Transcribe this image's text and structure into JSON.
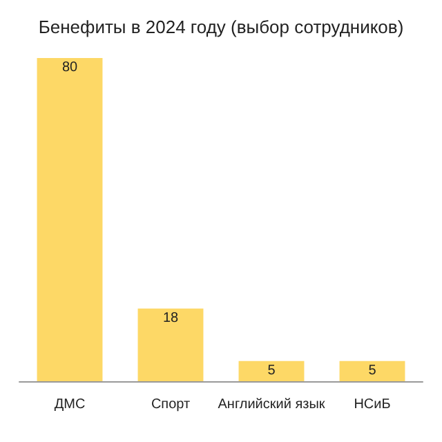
{
  "chart_data": {
    "type": "bar",
    "title": "Бенефиты в 2024 году (выбор сотрудников)",
    "categories": [
      "ДМС",
      "Спорт",
      "Английский язык",
      "НСиБ"
    ],
    "values": [
      80,
      18,
      5,
      5
    ],
    "color": "#fdd866",
    "tick_labels": "x",
    "data_labels": true
  }
}
